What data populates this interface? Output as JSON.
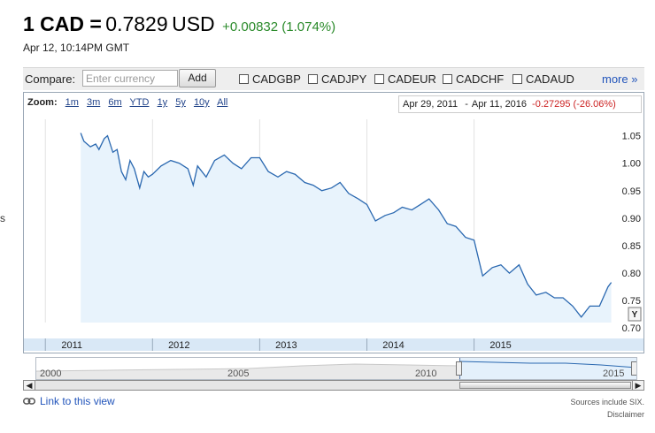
{
  "quote": {
    "pair_label": "1 CAD =",
    "rate": "0.7829",
    "currency": "USD",
    "change": "+0.00832 (1.074%)",
    "timestamp": "Apr 12, 10:14PM GMT"
  },
  "compare": {
    "label": "Compare:",
    "input_placeholder": "Enter currency",
    "input_value": "",
    "add_label": "Add",
    "pairs": [
      {
        "label": "CADGBP",
        "checked": false
      },
      {
        "label": "CADJPY",
        "checked": false
      },
      {
        "label": "CADEUR",
        "checked": false
      },
      {
        "label": "CADCHF",
        "checked": false
      },
      {
        "label": "CADAUD",
        "checked": false
      }
    ],
    "more_label": "more »"
  },
  "zoom": {
    "label": "Zoom:",
    "options": [
      "1m",
      "3m",
      "6m",
      "YTD",
      "1y",
      "5y",
      "10y",
      "All"
    ]
  },
  "range": {
    "start": "Apr 29, 2011",
    "separator": "-",
    "end": "Apr 11, 2016",
    "change": "-0.27295 (-26.06%)"
  },
  "side_stub": "s",
  "chart_data": {
    "type": "area",
    "ylim": [
      0.71,
      1.08
    ],
    "y_ticks": [
      "1.05",
      "1.00",
      "0.95",
      "0.90",
      "0.85",
      "0.80",
      "0.75",
      "0.70"
    ],
    "x_ticks": [
      "2011",
      "2012",
      "2013",
      "2014",
      "2015"
    ],
    "x_tick_positions_year": [
      2011.0,
      2012.0,
      2013.0,
      2014.0,
      2015.0
    ],
    "series": [
      {
        "x": [
          2011.33,
          2011.36,
          2011.42,
          2011.47,
          2011.5,
          2011.55,
          2011.58,
          2011.63,
          2011.67,
          2011.71,
          2011.75,
          2011.79,
          2011.83,
          2011.88,
          2011.92,
          2011.96,
          2012.0,
          2012.08,
          2012.17,
          2012.25,
          2012.33,
          2012.38,
          2012.42,
          2012.5,
          2012.58,
          2012.67,
          2012.75,
          2012.83,
          2012.92,
          2013.0,
          2013.08,
          2013.17,
          2013.25,
          2013.33,
          2013.42,
          2013.5,
          2013.58,
          2013.67,
          2013.75,
          2013.83,
          2013.92,
          2014.0,
          2014.08,
          2014.17,
          2014.25,
          2014.33,
          2014.42,
          2014.5,
          2014.58,
          2014.67,
          2014.75,
          2014.83,
          2014.92,
          2015.0,
          2015.08,
          2015.17,
          2015.25,
          2015.33,
          2015.42,
          2015.5,
          2015.58,
          2015.67,
          2015.75,
          2015.83,
          2015.92,
          2016.0,
          2016.08,
          2016.17,
          2016.25,
          2016.28
        ],
        "y": [
          1.055,
          1.04,
          1.03,
          1.035,
          1.025,
          1.045,
          1.05,
          1.02,
          1.025,
          0.985,
          0.97,
          1.005,
          0.99,
          0.955,
          0.985,
          0.975,
          0.98,
          0.995,
          1.005,
          1.0,
          0.99,
          0.96,
          0.995,
          0.975,
          1.005,
          1.015,
          1.0,
          0.99,
          1.01,
          1.01,
          0.985,
          0.975,
          0.985,
          0.98,
          0.965,
          0.96,
          0.95,
          0.955,
          0.965,
          0.945,
          0.935,
          0.925,
          0.895,
          0.905,
          0.91,
          0.92,
          0.915,
          0.925,
          0.935,
          0.915,
          0.89,
          0.885,
          0.865,
          0.86,
          0.795,
          0.81,
          0.815,
          0.8,
          0.815,
          0.78,
          0.76,
          0.765,
          0.755,
          0.755,
          0.74,
          0.72,
          0.74,
          0.74,
          0.775,
          0.783
        ]
      }
    ],
    "xlim": [
      2010.8,
      2016.3
    ],
    "line_color": "#2a68b0",
    "fill_color": "#e8f3fc",
    "grid": true
  },
  "overview": {
    "labels": [
      "2000",
      "2005",
      "2010",
      "2015"
    ]
  },
  "footer": {
    "link_label": "Link to this view",
    "sources": "Sources include SIX.",
    "disclaimer": "Disclaimer"
  },
  "icons": {
    "link": "chain-link-icon",
    "scroll_left": "arrow-left-icon",
    "scroll_right": "arrow-right-icon"
  }
}
